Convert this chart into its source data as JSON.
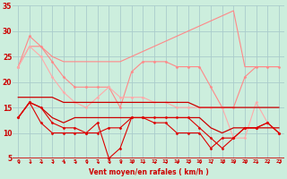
{
  "background_color": "#cceedd",
  "grid_color": "#aacccc",
  "xlabel": "Vent moyen/en rafales ( km/h )",
  "x": [
    0,
    1,
    2,
    3,
    4,
    5,
    6,
    7,
    8,
    9,
    10,
    11,
    12,
    13,
    14,
    15,
    16,
    17,
    18,
    19,
    20,
    21,
    22,
    23
  ],
  "ylim": [
    5,
    35
  ],
  "yticks": [
    5,
    10,
    15,
    20,
    25,
    30,
    35
  ],
  "series": [
    {
      "color": "#ff8888",
      "linewidth": 0.8,
      "marker": null,
      "values": [
        23,
        27,
        27,
        25,
        24,
        24,
        24,
        24,
        24,
        24,
        25,
        26,
        27,
        28,
        29,
        30,
        31,
        32,
        33,
        34,
        23,
        23,
        23,
        23
      ]
    },
    {
      "color": "#ff8888",
      "linewidth": 0.8,
      "marker": "D",
      "markersize": 1.5,
      "values": [
        23,
        29,
        27,
        24,
        21,
        19,
        19,
        19,
        19,
        15,
        22,
        24,
        24,
        24,
        23,
        23,
        23,
        19,
        15,
        15,
        21,
        23,
        23,
        23
      ]
    },
    {
      "color": "#ffaaaa",
      "linewidth": 0.8,
      "marker": "D",
      "markersize": 1.5,
      "values": [
        23,
        27,
        25,
        21,
        18,
        16,
        15,
        17,
        19,
        17,
        17,
        17,
        16,
        16,
        15,
        15,
        15,
        15,
        15,
        9,
        9,
        16,
        12,
        10
      ]
    },
    {
      "color": "#cc0000",
      "linewidth": 0.9,
      "marker": null,
      "values": [
        17,
        17,
        17,
        17,
        16,
        16,
        16,
        16,
        16,
        16,
        16,
        16,
        16,
        16,
        16,
        16,
        15,
        15,
        15,
        15,
        15,
        15,
        15,
        15
      ]
    },
    {
      "color": "#cc0000",
      "linewidth": 0.9,
      "marker": null,
      "values": [
        13,
        16,
        15,
        13,
        12,
        13,
        13,
        13,
        13,
        13,
        13,
        13,
        13,
        13,
        13,
        13,
        13,
        11,
        10,
        11,
        11,
        11,
        11,
        11
      ]
    },
    {
      "color": "#dd0000",
      "linewidth": 0.8,
      "marker": "D",
      "markersize": 1.5,
      "values": [
        13,
        16,
        15,
        12,
        11,
        11,
        10,
        12,
        5,
        7,
        13,
        13,
        13,
        13,
        13,
        13,
        11,
        9,
        7,
        9,
        11,
        11,
        12,
        10
      ]
    },
    {
      "color": "#dd0000",
      "linewidth": 0.8,
      "marker": "D",
      "markersize": 1.5,
      "values": [
        13,
        16,
        12,
        10,
        10,
        10,
        10,
        10,
        11,
        11,
        13,
        13,
        12,
        12,
        10,
        10,
        10,
        7,
        9,
        9,
        11,
        11,
        12,
        10
      ]
    }
  ]
}
